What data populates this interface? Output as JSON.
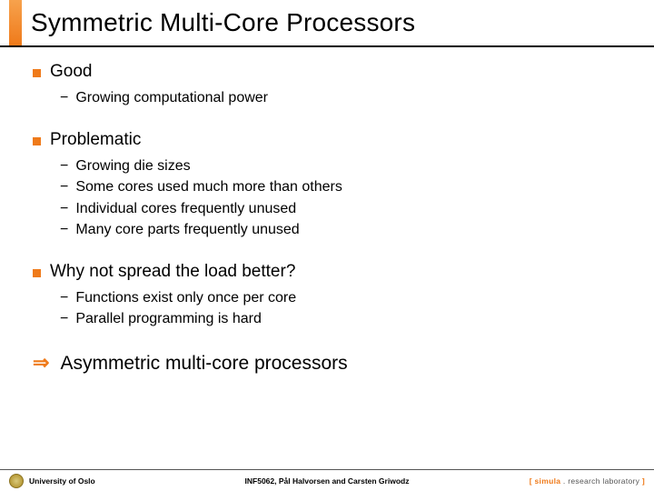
{
  "colors": {
    "accent": "#ef7a1a",
    "accent_light": "#f7a24d",
    "text": "#000000",
    "bg": "#ffffff",
    "footer_rule": "#555555"
  },
  "typography": {
    "title_fontsize": 28,
    "section_fontsize": 19,
    "sub_fontsize": 16,
    "conclusion_fontsize": 21,
    "footer_fontsize": 8.5,
    "family": "Verdana"
  },
  "title": "Symmetric Multi-Core Processors",
  "sections": [
    {
      "bullet_color": "#ef7a1a",
      "heading": "Good",
      "items": [
        "Growing computational power"
      ]
    },
    {
      "bullet_color": "#ef7a1a",
      "heading": "Problematic",
      "items": [
        "Growing die sizes",
        "Some cores used much more than others",
        "Individual cores frequently unused",
        "Many core parts frequently unused"
      ]
    },
    {
      "bullet_color": "#ef7a1a",
      "heading": "Why not spread the load better?",
      "items": [
        "Functions exist only once per core",
        "Parallel programming is hard"
      ]
    }
  ],
  "conclusion": {
    "arrow_color": "#ef7a1a",
    "text": "Asymmetric multi-core processors"
  },
  "footer": {
    "left": "University of Oslo",
    "center": "INF5062, Pål Halvorsen and Carsten Griwodz",
    "right_bracket_open": "[ ",
    "right_simula": "simula",
    "right_dot": " . ",
    "right_rest": "research laboratory",
    "right_bracket_close": " ]"
  }
}
